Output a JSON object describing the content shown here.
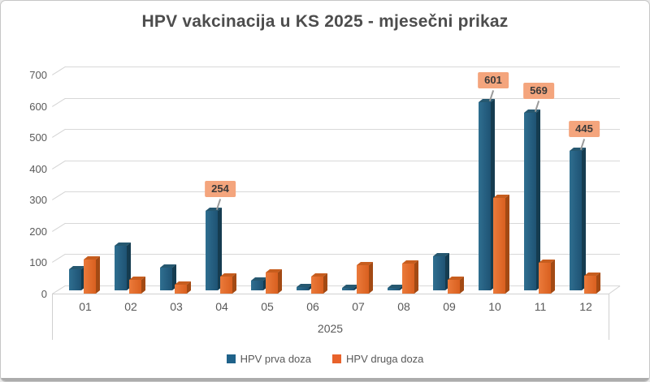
{
  "window": {
    "background": "#FFFFFF",
    "frame_border_color": "#C6C6C6",
    "bottom_strip_color": "#ACACAC"
  },
  "chart_data": {
    "type": "bar",
    "variant": "3d-clustered-column",
    "title": "HPV vakcinacija u KS 2025 - mjesečni prikaz",
    "categories": [
      "01",
      "02",
      "03",
      "04",
      "05",
      "06",
      "07",
      "08",
      "09",
      "10",
      "11",
      "12"
    ],
    "x_group_label": "2025",
    "ylim": [
      0,
      700
    ],
    "yticks": [
      0,
      100,
      200,
      300,
      400,
      500,
      600,
      700
    ],
    "grid": true,
    "legend_position": "bottom",
    "series": [
      {
        "name": "HPV prva doza",
        "color": "#1F628A",
        "face_gradient": [
          "#2F6F90",
          "#1E5273"
        ],
        "side_color": "#153C50",
        "top_color": "#265870",
        "values": [
          68,
          143,
          72,
          254,
          30,
          10,
          8,
          8,
          108,
          601,
          569,
          445
        ]
      },
      {
        "name": "HPV druga doza",
        "color": "#E8622B",
        "face_gradient": [
          "#EB7A3B",
          "#D9601F"
        ],
        "side_color": "#A34A14",
        "top_color": "#C75D1E",
        "values": [
          110,
          45,
          28,
          55,
          68,
          55,
          90,
          95,
          45,
          305,
          98,
          58
        ]
      }
    ],
    "data_labels": [
      {
        "series": "HPV prva doza",
        "category": "04",
        "value": 254
      },
      {
        "series": "HPV prva doza",
        "category": "10",
        "value": 601
      },
      {
        "series": "HPV prva doza",
        "category": "11",
        "value": 569
      },
      {
        "series": "HPV prva doza",
        "category": "12",
        "value": 445
      }
    ],
    "data_label_style": {
      "background": "#F4A57D",
      "text_color": "#3A3A3A"
    },
    "gridline_color": "#D8D8D8",
    "axis_text_color": "#595959",
    "title_color": "#4D4D4D"
  }
}
